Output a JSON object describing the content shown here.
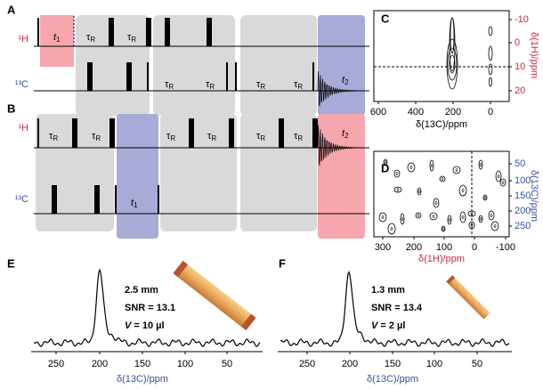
{
  "sequence": {
    "h1": "¹H",
    "c13": "¹³C",
    "tau": {
      "symbol": "τ",
      "sub": "R"
    },
    "t1": {
      "symbol": "t",
      "sub": "1"
    },
    "t2": {
      "symbol": "t",
      "sub": "2"
    }
  },
  "panels": [
    {
      "label": "A"
    },
    {
      "label": "B"
    },
    {
      "label": "C",
      "x_label": "δ(13C)/ppm",
      "y_label": "δ(1H)/ppm",
      "x_ticks": [
        600,
        400,
        200,
        0
      ],
      "y_ticks": [
        -10,
        0,
        10,
        20
      ]
    },
    {
      "label": "D",
      "x_label": "δ(1H)/ppm",
      "y_label": "δ(13C)/ppm",
      "x_ticks": [
        300,
        200,
        100,
        0,
        -100
      ],
      "y_ticks": [
        50,
        100,
        150,
        200,
        250
      ]
    },
    {
      "label": "E",
      "diameter": "2.5 mm",
      "snr": "SNR = 13.1",
      "volume_symbol": "V",
      "volume": " = 10 µl",
      "x_label": "δ(13C)/ppm",
      "x_ticks": [
        250,
        200,
        150,
        100,
        50
      ]
    },
    {
      "label": "F",
      "diameter": "1.3 mm",
      "snr": "SNR = 13.4",
      "volume_symbol": "V",
      "volume": " = 2 µl",
      "x_label": "δ(13C)/ppm",
      "x_ticks": [
        250,
        200,
        150,
        100,
        50
      ]
    }
  ]
}
